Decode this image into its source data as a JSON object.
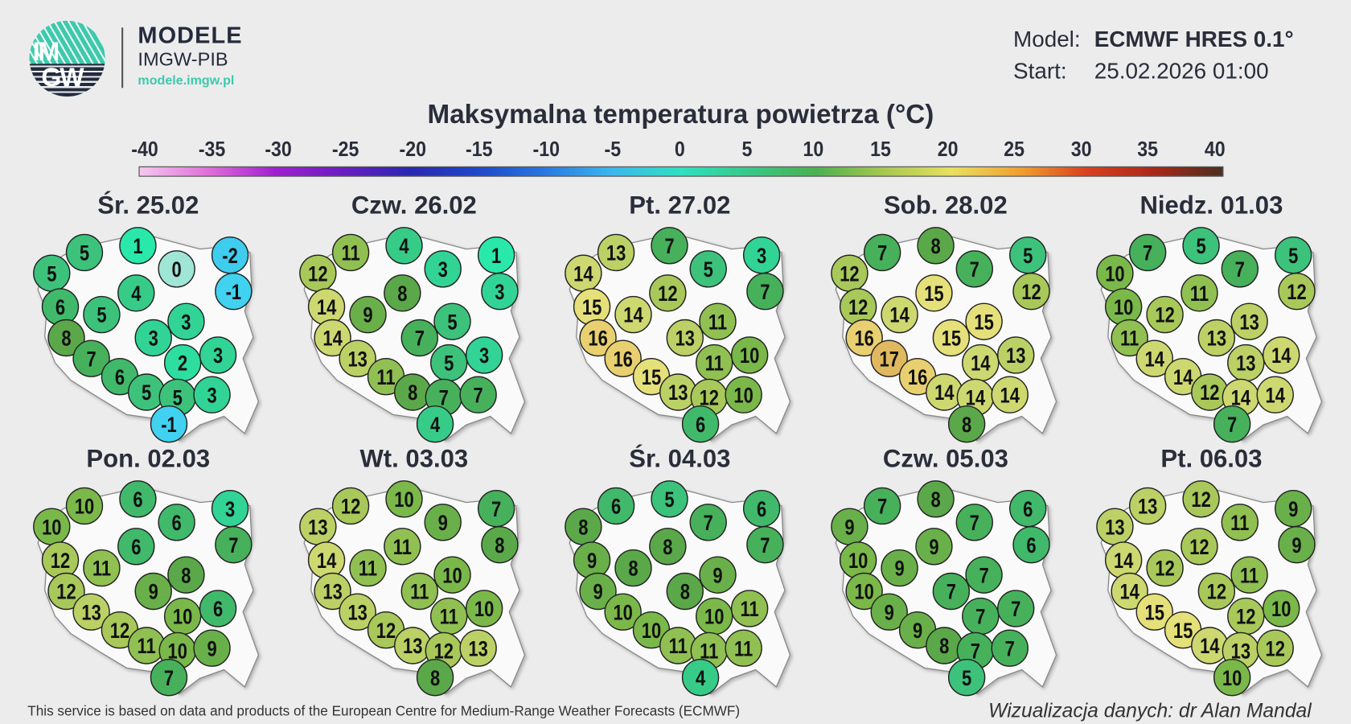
{
  "logo": {
    "text_top": "IM",
    "text_bottom": "GW",
    "brand": "MODELE",
    "org": "IMGW-PIB",
    "url": "modele.imgw.pl",
    "accent": "#3ec9ad",
    "dark": "#252a3d"
  },
  "info": {
    "model_label": "Model:",
    "model_value": "ECMWF HRES 0.1°",
    "start_label": "Start:",
    "start_value": "25.02.2026 01:00"
  },
  "title": "Maksymalna temperatura powietrza (°C)",
  "colorbar": {
    "ticks": [
      "-40",
      "-35",
      "-30",
      "-25",
      "-20",
      "-15",
      "-10",
      "-5",
      "0",
      "5",
      "10",
      "15",
      "20",
      "25",
      "30",
      "35",
      "40"
    ],
    "colors": [
      "#f4c8f0",
      "#e070d8",
      "#a020d0",
      "#6a1ec0",
      "#2a28b0",
      "#1e48c8",
      "#2a78e0",
      "#3cb8ec",
      "#30e0c0",
      "#38c888",
      "#4cb050",
      "#a8c850",
      "#e8e060",
      "#f0a030",
      "#d84020",
      "#a82818",
      "#4a3020"
    ]
  },
  "maps": [
    {
      "day": "Śr. 25.02",
      "values": [
        5,
        1,
        0,
        -2,
        5,
        -1,
        4,
        6,
        5,
        3,
        3,
        8,
        7,
        2,
        3,
        6,
        5,
        5,
        3,
        -1
      ]
    },
    {
      "day": "Czw. 26.02",
      "values": [
        11,
        4,
        3,
        1,
        12,
        3,
        8,
        14,
        9,
        5,
        7,
        14,
        13,
        5,
        3,
        11,
        8,
        7,
        7,
        4
      ]
    },
    {
      "day": "Pt. 27.02",
      "values": [
        13,
        7,
        5,
        3,
        14,
        7,
        12,
        15,
        14,
        11,
        13,
        16,
        16,
        11,
        10,
        15,
        13,
        12,
        10,
        6
      ]
    },
    {
      "day": "Sob. 28.02",
      "values": [
        7,
        8,
        7,
        5,
        12,
        12,
        15,
        12,
        14,
        15,
        15,
        16,
        17,
        14,
        13,
        16,
        14,
        14,
        14,
        8
      ]
    },
    {
      "day": "Niedz. 01.03",
      "values": [
        7,
        5,
        7,
        5,
        10,
        12,
        11,
        10,
        12,
        13,
        13,
        11,
        14,
        13,
        14,
        14,
        12,
        14,
        14,
        7
      ]
    },
    {
      "day": "Pon. 02.03",
      "values": [
        10,
        6,
        6,
        3,
        10,
        7,
        6,
        12,
        11,
        8,
        9,
        12,
        13,
        10,
        6,
        12,
        11,
        10,
        9,
        7
      ]
    },
    {
      "day": "Wt. 03.03",
      "values": [
        12,
        10,
        9,
        7,
        13,
        8,
        11,
        14,
        11,
        10,
        11,
        13,
        13,
        11,
        10,
        12,
        13,
        12,
        13,
        8
      ]
    },
    {
      "day": "Śr. 04.03",
      "values": [
        6,
        5,
        7,
        6,
        8,
        7,
        8,
        9,
        8,
        9,
        8,
        9,
        10,
        10,
        11,
        10,
        11,
        11,
        11,
        4
      ]
    },
    {
      "day": "Czw. 05.03",
      "values": [
        7,
        8,
        7,
        6,
        9,
        6,
        9,
        10,
        9,
        7,
        7,
        10,
        9,
        7,
        7,
        9,
        8,
        7,
        7,
        5
      ]
    },
    {
      "day": "Pt. 06.03",
      "values": [
        13,
        12,
        11,
        9,
        13,
        9,
        12,
        14,
        12,
        11,
        12,
        14,
        15,
        12,
        10,
        15,
        14,
        13,
        12,
        10
      ]
    }
  ],
  "footer": {
    "left": "This service is based on data and products of the European Centre for Medium-Range Weather Forecasts (ECMWF)",
    "right": "Wizualizacja danych: dr Alan Mandal"
  }
}
